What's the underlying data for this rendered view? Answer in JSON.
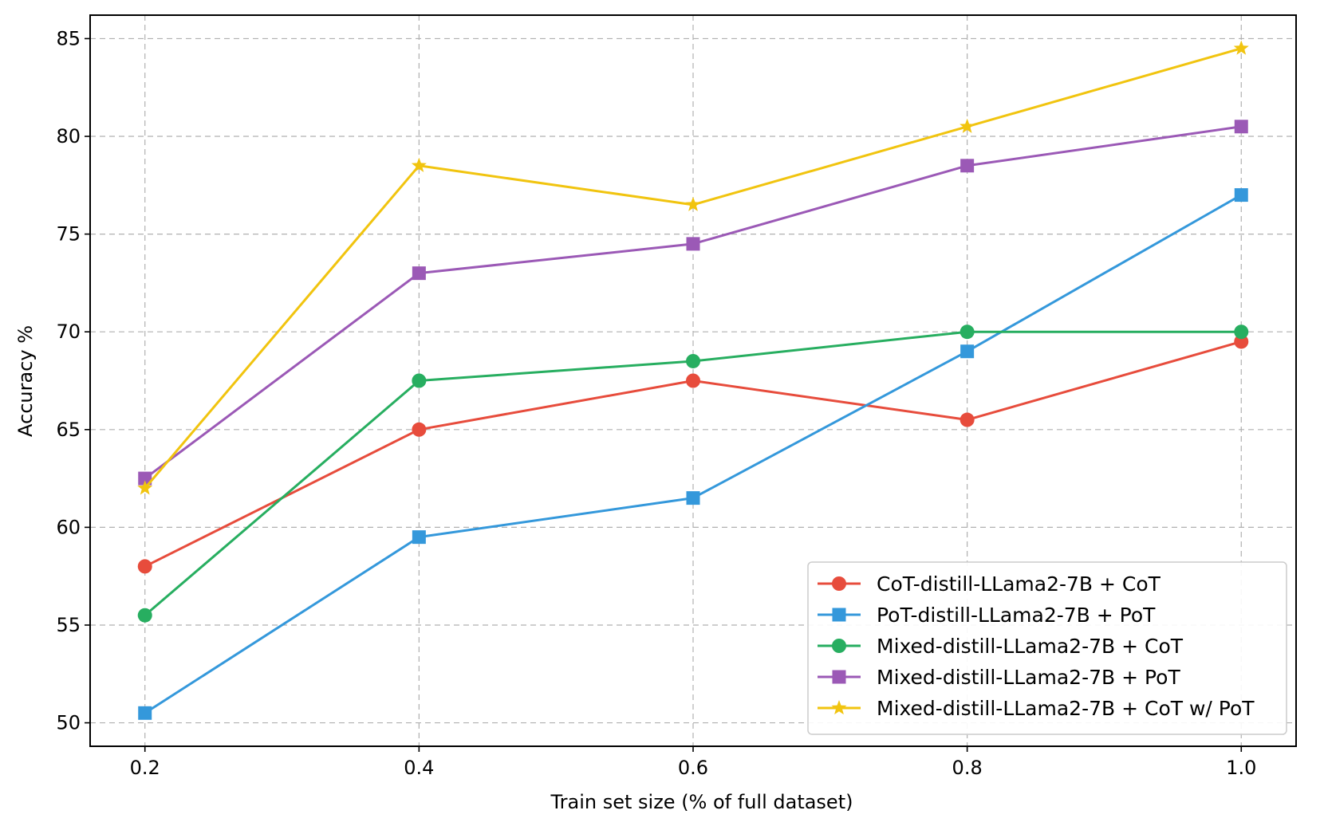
{
  "chart_data": {
    "type": "line",
    "title": "",
    "xlabel": "Train set size (% of full dataset)",
    "ylabel": "Accuracy %",
    "x": [
      0.2,
      0.4,
      0.6,
      0.8,
      1.0
    ],
    "x_tick_labels": [
      "0.2",
      "0.4",
      "0.6",
      "0.8",
      "1.0"
    ],
    "xlim": [
      0.16,
      1.04
    ],
    "ylim": [
      48.8,
      86.2
    ],
    "y_ticks": [
      50,
      55,
      60,
      65,
      70,
      75,
      80,
      85
    ],
    "grid": true,
    "legend_position": "bottom-right",
    "series": [
      {
        "name": "CoT-distill-LLama2-7B + CoT",
        "color": "#e74c3c",
        "marker": "circle",
        "values": [
          58.0,
          65.0,
          67.5,
          65.5,
          69.5
        ]
      },
      {
        "name": "PoT-distill-LLama2-7B + PoT",
        "color": "#3498db",
        "marker": "square",
        "values": [
          50.5,
          59.5,
          61.5,
          69.0,
          77.0
        ]
      },
      {
        "name": "Mixed-distill-LLama2-7B + CoT",
        "color": "#27ae60",
        "marker": "circle",
        "values": [
          55.5,
          67.5,
          68.5,
          70.0,
          70.0
        ]
      },
      {
        "name": "Mixed-distill-LLama2-7B + PoT",
        "color": "#9b59b6",
        "marker": "square",
        "values": [
          62.5,
          73.0,
          74.5,
          78.5,
          80.5
        ]
      },
      {
        "name": "Mixed-distill-LLama2-7B + CoT w/ PoT",
        "color": "#f1c40f",
        "marker": "star",
        "values": [
          62.0,
          78.5,
          76.5,
          80.5,
          84.5
        ]
      }
    ]
  }
}
